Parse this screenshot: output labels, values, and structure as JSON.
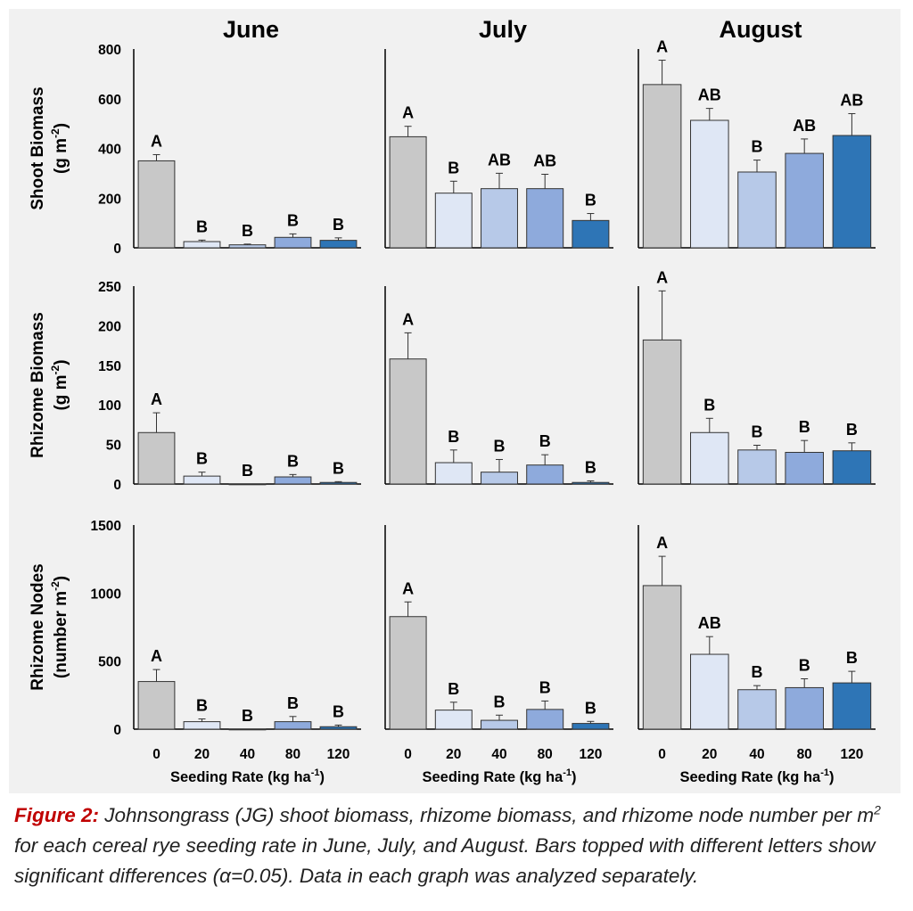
{
  "caption": {
    "label": "Figure 2:",
    "text": "Johnsongrass (JG) shoot biomass, rhizome biomass, and rhizome node number per m",
    "superscript": "2",
    "text_after": " for each cereal rye seeding rate in June, July, and August. Bars topped with different letters show significant differences (α=0.05). Data in each graph was analyzed separately."
  },
  "colors": {
    "panel_bg": "#f1f1f1",
    "bar_colors": [
      "#c8c8c8",
      "#dfe7f5",
      "#b7c9e8",
      "#8eaadc",
      "#2e75b6"
    ],
    "caption_label": "#c00000"
  },
  "chart_data": {
    "type": "bar",
    "grid": false,
    "legend": "none",
    "months": [
      "June",
      "July",
      "August"
    ],
    "categories": [
      "0",
      "20",
      "40",
      "80",
      "120"
    ],
    "xlabel": "Seeding Rate (kg ha",
    "xlabel_sup": "-1",
    "xlabel_end": ")",
    "rows": [
      {
        "ylabel_line1": "Shoot Biomass",
        "ylabel_line2": "(g m",
        "ylabel_sup": "-2",
        "ylabel_end": ")",
        "ylim": [
          0,
          800
        ],
        "yticks": [
          "0",
          "200",
          "400",
          "600",
          "800"
        ],
        "panels": [
          {
            "month": "June",
            "values": [
              350,
              25,
              12,
              42,
              30
            ],
            "errors": [
              25,
              6,
              3,
              14,
              10
            ],
            "letters": [
              "A",
              "B",
              "B",
              "B",
              "B"
            ]
          },
          {
            "month": "July",
            "values": [
              447,
              220,
              238,
              238,
              110
            ],
            "errors": [
              42,
              48,
              62,
              58,
              28
            ],
            "letters": [
              "A",
              "B",
              "AB",
              "AB",
              "B"
            ]
          },
          {
            "month": "August",
            "values": [
              657,
              513,
              305,
              380,
              452
            ],
            "errors": [
              98,
              48,
              48,
              58,
              88
            ],
            "letters": [
              "A",
              "AB",
              "B",
              "AB",
              "AB"
            ]
          }
        ]
      },
      {
        "ylabel_line1": "Rhizome Biomass",
        "ylabel_line2": "(g m",
        "ylabel_sup": "-2",
        "ylabel_end": ")",
        "ylim": [
          0,
          250
        ],
        "yticks": [
          "0",
          "50",
          "100",
          "150",
          "200",
          "250"
        ],
        "panels": [
          {
            "month": "June",
            "values": [
              65,
              10,
              0,
              9,
              2
            ],
            "errors": [
              25,
              5,
              0,
              3,
              1
            ],
            "letters": [
              "A",
              "B",
              "B",
              "B",
              "B"
            ]
          },
          {
            "month": "July",
            "values": [
              158,
              27,
              15,
              24,
              2
            ],
            "errors": [
              33,
              16,
              16,
              13,
              2
            ],
            "letters": [
              "A",
              "B",
              "B",
              "B",
              "B"
            ]
          },
          {
            "month": "August",
            "values": [
              182,
              65,
              43,
              40,
              42
            ],
            "errors": [
              62,
              18,
              6,
              15,
              10
            ],
            "letters": [
              "A",
              "B",
              "B",
              "B",
              "B"
            ]
          }
        ]
      },
      {
        "ylabel_line1": "Rhizome Nodes",
        "ylabel_line2": "(number m",
        "ylabel_sup": "-2",
        "ylabel_end": ")",
        "ylim": [
          0,
          1500
        ],
        "yticks": [
          "0",
          "500",
          "1000",
          "1500"
        ],
        "panels": [
          {
            "month": "June",
            "values": [
              350,
              55,
              0,
              55,
              18
            ],
            "errors": [
              88,
              20,
              0,
              38,
              12
            ],
            "letters": [
              "A",
              "B",
              "B",
              "B",
              "B"
            ]
          },
          {
            "month": "July",
            "values": [
              827,
              140,
              65,
              145,
              42
            ],
            "errors": [
              108,
              58,
              38,
              62,
              15
            ],
            "letters": [
              "A",
              "B",
              "B",
              "B",
              "B"
            ]
          },
          {
            "month": "August",
            "values": [
              1055,
              550,
              290,
              305,
              340
            ],
            "errors": [
              215,
              130,
              30,
              65,
              85
            ],
            "letters": [
              "A",
              "AB",
              "B",
              "B",
              "B"
            ]
          }
        ]
      }
    ]
  }
}
